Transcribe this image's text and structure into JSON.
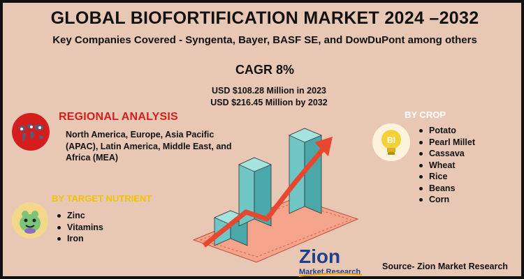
{
  "header": {
    "title": "GLOBAL BIOFORTIFICATION MARKET 2024 –2032",
    "subtitle": "Key Companies Covered - Syngenta, Bayer, BASF SE, and DowDuPont among others"
  },
  "stats": {
    "cagr": "CAGR 8%",
    "value_2023": "USD $108.28 Million in 2023",
    "value_2032": "USD $216.45 Million  by 2032"
  },
  "regional": {
    "title": "REGIONAL ANALYSIS",
    "text": "North America, Europe, Asia Pacific (APAC), Latin America, Middle East, and Africa (MEA)",
    "icon": "world-map-icon"
  },
  "nutrient": {
    "title": "BY TARGET NUTRIENT",
    "items": [
      "Zinc",
      "Vitamins",
      "Iron"
    ],
    "icon": "nutrient-character-icon"
  },
  "crop": {
    "title": "BY CROP",
    "items": [
      "Potato",
      "Pearl Millet",
      "Cassava",
      "Wheat",
      "Rice",
      "Beans",
      "Corn"
    ],
    "icon": "lightbulb-bi-icon",
    "icon_text": "BI"
  },
  "logo": {
    "word1": "Zion",
    "word2": "Market.Research"
  },
  "source": "Source- Zion Market Research",
  "colors": {
    "background": "#e8c8b4",
    "accent_red": "#d41e1e",
    "accent_yellow": "#f2c200",
    "bar_teal": "#7fd3d0",
    "arrow_red": "#e8472f"
  }
}
